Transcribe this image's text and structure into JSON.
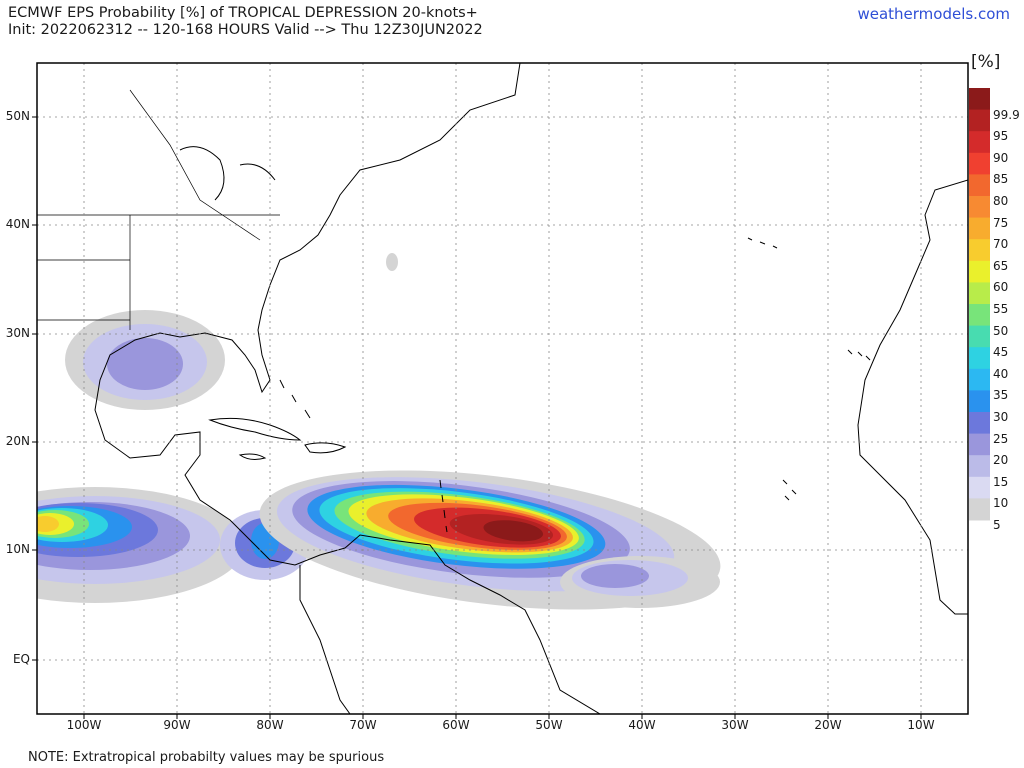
{
  "header": {
    "title": "ECMWF EPS Probability [%] of TROPICAL DEPRESSION 20-knots+",
    "subtitle": "Init: 2022062312 -- 120-168 HOURS Valid --> Thu 12Z30JUN2022",
    "site": "weathermodels.com"
  },
  "note": "NOTE: Extratropical probabilty values may be spurious",
  "map": {
    "lat_labels": [
      "50N",
      "40N",
      "30N",
      "20N",
      "10N",
      "EQ"
    ],
    "lon_labels": [
      "100W",
      "90W",
      "80W",
      "70W",
      "60W",
      "50W",
      "40W",
      "30W",
      "20W",
      "10W"
    ],
    "grid": "dotted",
    "land_color": "#ffffff",
    "coast_color": "#000000"
  },
  "colorbar": {
    "unit": "[%]",
    "levels": [
      "99.9",
      "95",
      "90",
      "85",
      "80",
      "75",
      "70",
      "65",
      "60",
      "55",
      "50",
      "45",
      "40",
      "35",
      "30",
      "25",
      "20",
      "15",
      "10",
      "5"
    ],
    "colors": [
      "#8b1a1a",
      "#b32222",
      "#d42b2b",
      "#f04030",
      "#f2682e",
      "#f78a32",
      "#f8ac2e",
      "#f8cc2e",
      "#eaf02c",
      "#b8ec4a",
      "#78e47a",
      "#48dcb0",
      "#2ed2e2",
      "#2cb8f2",
      "#2a92ee",
      "#6c78dc",
      "#9a96dc",
      "#bbbbe8",
      "#dadaf2",
      "#d4d4d4"
    ]
  }
}
